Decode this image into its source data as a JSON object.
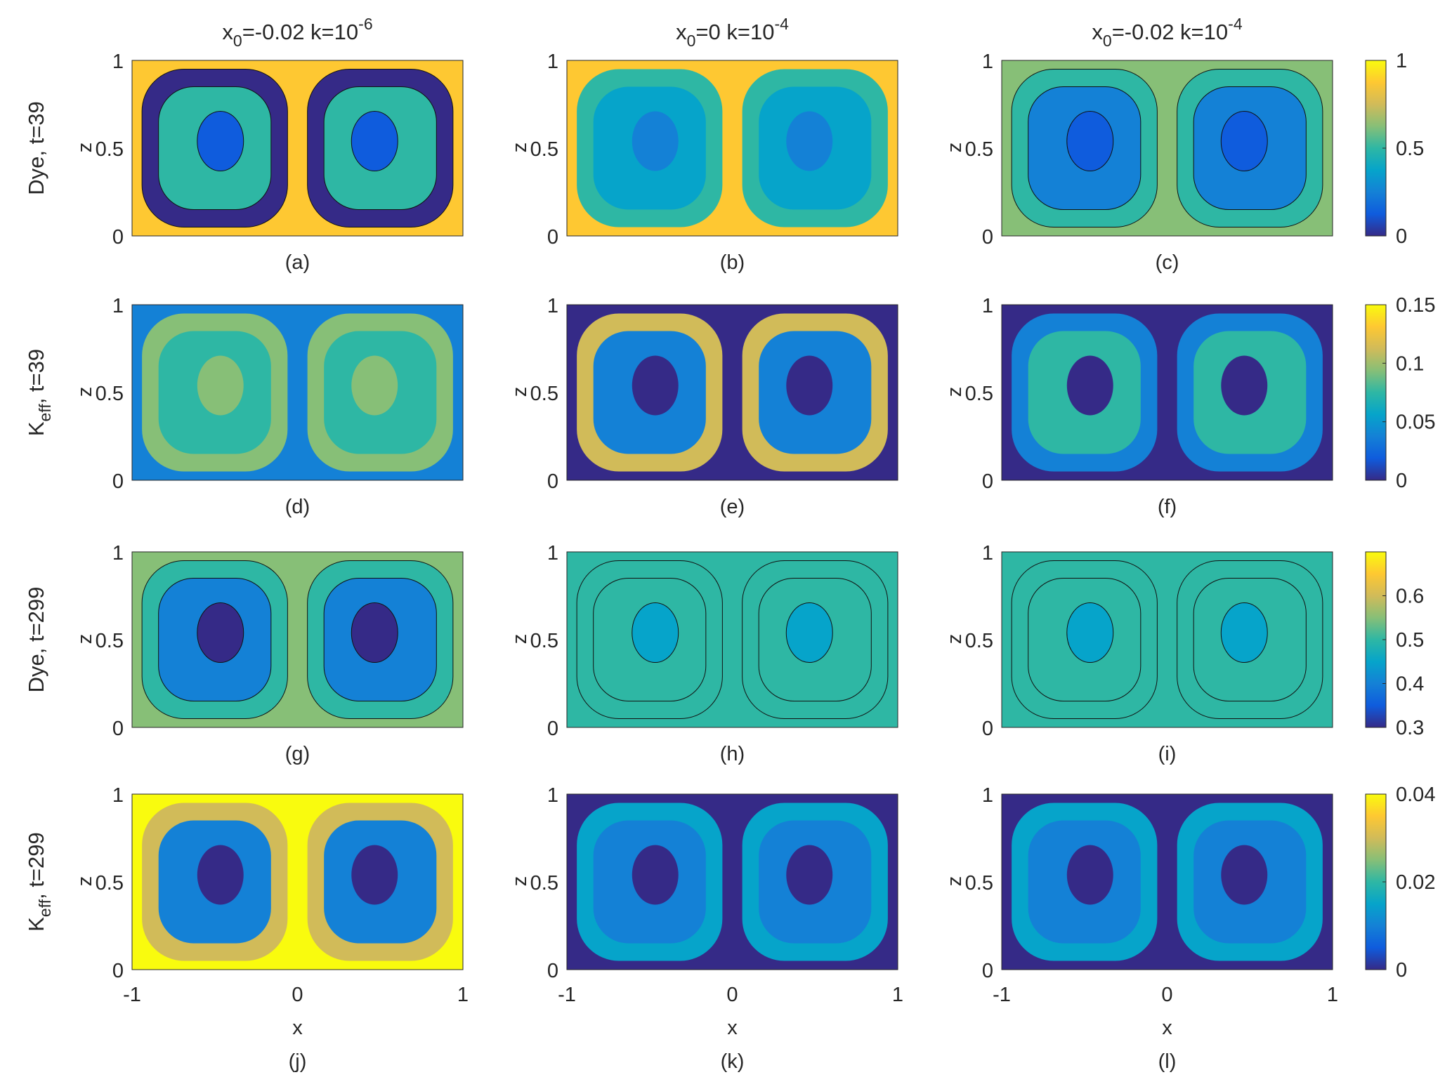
{
  "chart_data": {
    "type": "heatmap",
    "column_titles": [
      {
        "base": "x",
        "sub": "0",
        "mid": "=-0.02 k=10",
        "sup": "-6"
      },
      {
        "base": "x",
        "sub": "0",
        "mid": "=0 k=10",
        "sup": "-4"
      },
      {
        "base": "x",
        "sub": "0",
        "mid": "=-0.02 k=10",
        "sup": "-4"
      }
    ],
    "row_labels": [
      {
        "main": "Dye, t=39",
        "sub": ""
      },
      {
        "main": "K",
        "sub": "eff",
        "rest": ", t=39"
      },
      {
        "main": "Dye, t=299",
        "sub": ""
      },
      {
        "main": "K",
        "sub": "eff",
        "rest": ", t=299"
      }
    ],
    "ylabel": "z",
    "xlabel": "x",
    "xlim": [
      -1,
      1
    ],
    "ylim": [
      0,
      1
    ],
    "xticks": [
      "-1",
      "0",
      "1"
    ],
    "yticks": [
      "0",
      "0.5",
      "1"
    ],
    "panel_labels": [
      "(a)",
      "(b)",
      "(c)",
      "(d)",
      "(e)",
      "(f)",
      "(g)",
      "(h)",
      "(i)",
      "(j)",
      "(k)",
      "(l)"
    ],
    "colorbars": [
      {
        "clim": [
          0,
          1
        ],
        "ticks": [
          "0",
          "0.5",
          "1"
        ],
        "tick_values": [
          0,
          0.5,
          1
        ]
      },
      {
        "clim": [
          0,
          0.15
        ],
        "ticks": [
          "0",
          "0.05",
          "0.1",
          "0.15"
        ],
        "tick_values": [
          0,
          0.05,
          0.1,
          0.15
        ]
      },
      {
        "clim": [
          0.3,
          0.7
        ],
        "ticks": [
          "0.3",
          "0.4",
          "0.5",
          "0.6"
        ],
        "tick_values": [
          0.3,
          0.4,
          0.5,
          0.6
        ]
      },
      {
        "clim": [
          0,
          0.04
        ],
        "ticks": [
          "0",
          "0.02",
          "0.04"
        ],
        "tick_values": [
          0,
          0.02,
          0.04
        ]
      }
    ],
    "colormap": "parula",
    "colormap_colors": [
      "#352a87",
      "#0f5cdd",
      "#1481d6",
      "#06a4ca",
      "#2eb7a4",
      "#87bf77",
      "#d1bb59",
      "#fec832",
      "#f9fb0e"
    ]
  }
}
